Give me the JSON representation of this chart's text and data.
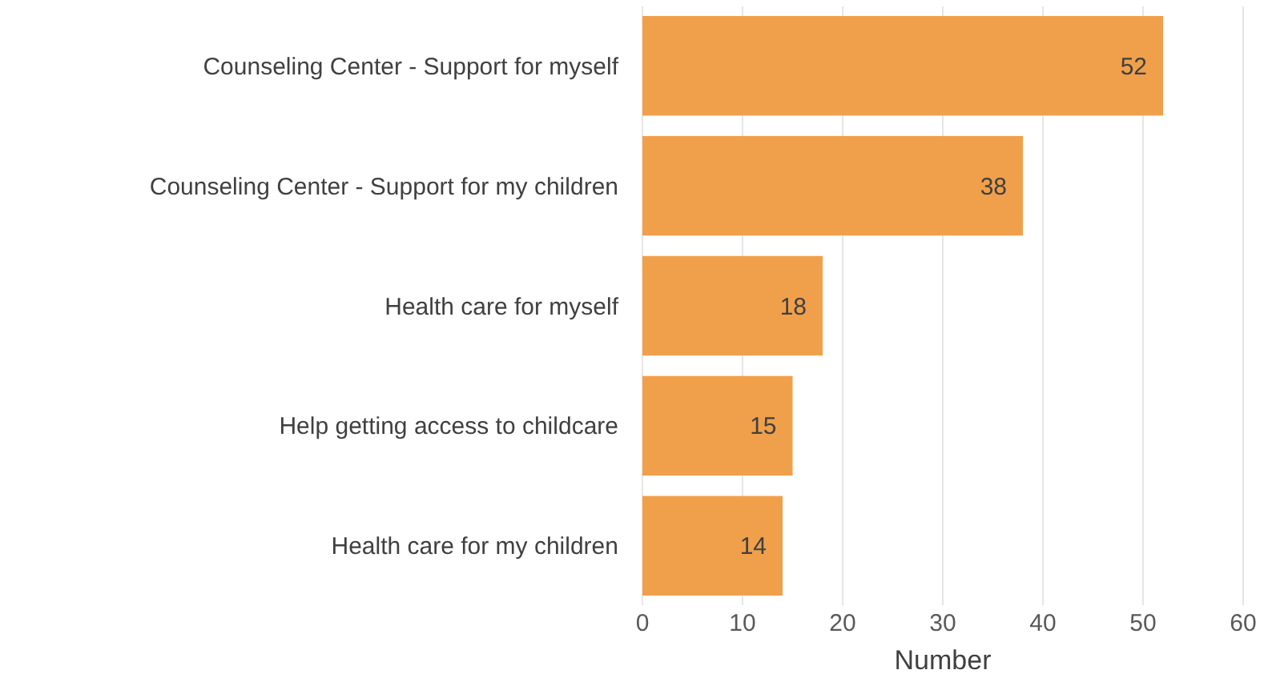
{
  "chart_data": {
    "type": "bar",
    "orientation": "horizontal",
    "xlabel": "Number",
    "categories": [
      "Counseling Center - Support for myself",
      "Counseling Center - Support for my children",
      "Health care for myself",
      "Help getting access to childcare",
      "Health care for my children"
    ],
    "values": [
      52,
      38,
      18,
      15,
      14
    ],
    "color": "#f0a04b",
    "data_labels": true,
    "xlim": [
      0,
      60
    ],
    "xticks": [
      0,
      10,
      20,
      30,
      40,
      50,
      60
    ],
    "grid": "x"
  }
}
